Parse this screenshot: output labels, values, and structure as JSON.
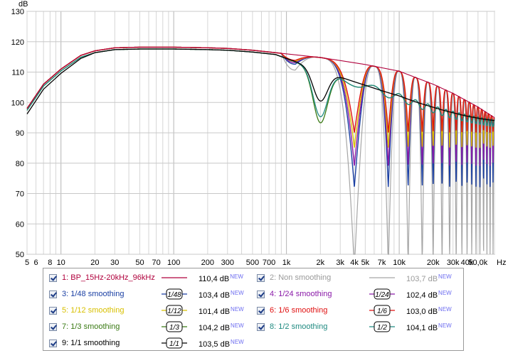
{
  "chart_data": {
    "type": "line",
    "ylabel": "dB",
    "xlabel_unit": "Hz",
    "x_scale": "log",
    "xlim": [
      5,
      70000
    ],
    "ylim": [
      50,
      130
    ],
    "grid": true,
    "x_ticks": [
      5,
      6,
      8,
      10,
      20,
      30,
      50,
      70,
      100,
      200,
      300,
      500,
      700,
      1000,
      2000,
      3000,
      4000,
      5000,
      7000,
      10000,
      20000,
      30000,
      40000,
      50000
    ],
    "x_tick_labels": [
      "5",
      "6",
      "8",
      "10",
      "20",
      "30",
      "50",
      "70",
      "100",
      "200",
      "300",
      "500",
      "700",
      "1k",
      "2k",
      "3k",
      "4k",
      "5k",
      "7k",
      "10k",
      "20k",
      "30k",
      "40k",
      "50,0k",
      "Hz"
    ],
    "y_ticks": [
      50,
      60,
      70,
      80,
      90,
      100,
      110,
      120,
      130
    ],
    "y_tick_labels": [
      "50",
      "60",
      "70",
      "80",
      "90",
      "100",
      "110",
      "120",
      "130"
    ],
    "legend_placement": "below",
    "series": [
      {
        "name": "1: BP_15Hz-20kHz_96kHz",
        "value": "110,4 dB",
        "color": "#b0003c",
        "symbol": "",
        "enabled": true
      },
      {
        "name": "2: Non smoothing",
        "value": "103,7 dB",
        "color": "#a6a6a6",
        "symbol": "",
        "enabled": true
      },
      {
        "name": "3: 1/48 smoothing",
        "value": "103,4 dB",
        "color": "#1a3fa3",
        "symbol": "1/48",
        "enabled": true
      },
      {
        "name": "4: 1/24 smoothing",
        "value": "102,4 dB",
        "color": "#8a1aa8",
        "symbol": "1/24",
        "enabled": true
      },
      {
        "name": "5: 1/12 smoothing",
        "value": "101,4 dB",
        "color": "#d8c000",
        "symbol": "1/12",
        "enabled": true
      },
      {
        "name": "6: 1/6 smoothing",
        "value": "103,0 dB",
        "color": "#e01010",
        "symbol": "1/6",
        "enabled": true
      },
      {
        "name": "7: 1/3 smoothing",
        "value": "104,2 dB",
        "color": "#3a7a14",
        "symbol": "1/3",
        "enabled": true
      },
      {
        "name": "8: 1/2 smoothing",
        "value": "104,1 dB",
        "color": "#1f8a80",
        "symbol": "1/2",
        "enabled": true
      },
      {
        "name": "9: 1/1 smoothing",
        "value": "103,5 dB",
        "color": "#000000",
        "symbol": "1/1",
        "enabled": true
      }
    ],
    "badge": "NEW",
    "envelope": {
      "x": [
        5,
        7,
        10,
        15,
        20,
        30,
        50,
        100,
        200,
        300,
        500,
        1000,
        2000,
        3000,
        5000,
        10000,
        20000,
        30000,
        50000,
        70000
      ],
      "y": [
        98,
        106,
        111,
        115.5,
        117,
        118,
        118.2,
        118.2,
        118,
        117.8,
        117.2,
        116,
        114.8,
        113.8,
        112.5,
        110.3,
        106,
        103,
        98.5,
        95
      ]
    },
    "comb_notches_hz": [
      2000,
      6000,
      10000,
      14000,
      18000,
      22000,
      26000,
      30000,
      34000,
      38000,
      42000,
      46000,
      50000,
      54000,
      58000,
      62000,
      66000
    ],
    "smoothed_levels": {
      "1/48": {
        "notch_min": 72,
        "floor_at_hf": 84
      },
      "1/24": {
        "notch_min": 79,
        "floor_at_hf": 86
      },
      "1/12": {
        "notch_min": 85,
        "floor_at_hf": 89
      },
      "1/6": {
        "notch_min": 90,
        "floor_at_hf": 92
      },
      "1/3": {
        "notch_min": 97,
        "floor_at_hf": 93
      },
      "1/2": {
        "notch_min": 99,
        "floor_at_hf": 93
      },
      "1/1": {
        "notch_min": 104,
        "floor_at_hf": 94
      }
    }
  }
}
